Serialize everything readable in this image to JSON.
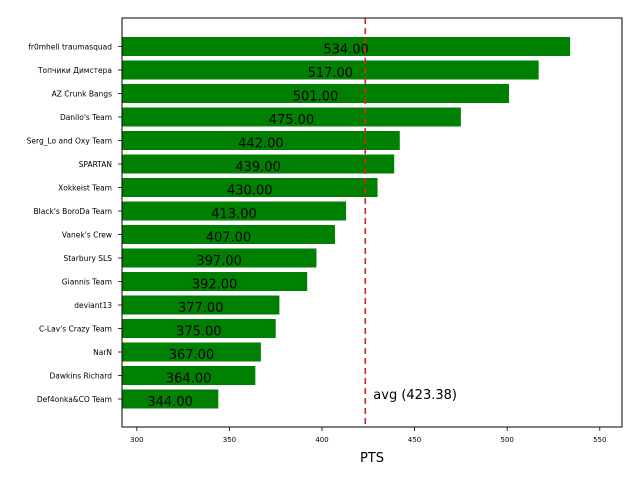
{
  "chart_data": {
    "type": "bar",
    "orientation": "horizontal",
    "categories": [
      "fr0mhell traumasquad",
      "Топчики Димстера",
      "AZ Crunk Bangs",
      "Danilo's Team",
      "Serg_Lo and Oxy Team",
      "SPARTAN",
      "Xokkeist Team",
      "Black's BoroDa Team",
      "Vanek's Crew",
      "Starbury SLS",
      "Giannis Team",
      "deviant13",
      "C-Lav's Crazy Team",
      "NarN",
      "Dawkins Richard",
      "Def4onka&CO Team"
    ],
    "values": [
      534,
      517,
      501,
      475,
      442,
      439,
      430,
      413,
      407,
      397,
      392,
      377,
      375,
      367,
      364,
      344
    ],
    "value_labels": [
      "534.00",
      "517.00",
      "501.00",
      "475.00",
      "442.00",
      "439.00",
      "430.00",
      "413.00",
      "407.00",
      "397.00",
      "392.00",
      "377.00",
      "375.00",
      "367.00",
      "364.00",
      "344.00"
    ],
    "xlabel": "PTS",
    "ylabel": "",
    "title": "",
    "xlim": [
      292,
      562
    ],
    "xticks": [
      300,
      350,
      400,
      450,
      500,
      550
    ],
    "bar_color": "#008000",
    "average": 423.38,
    "average_label": "avg (423.38)",
    "average_color": "#d62728",
    "grid": false
  }
}
